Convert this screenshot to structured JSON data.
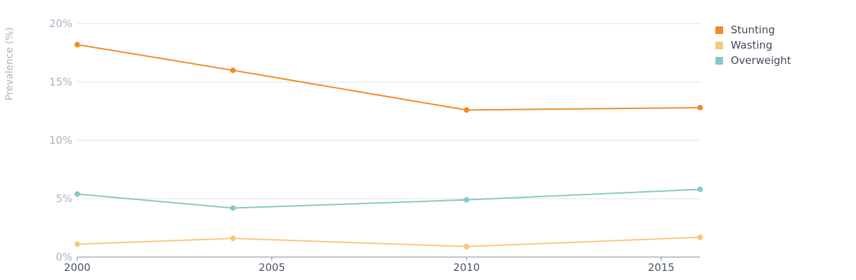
{
  "chart_data": {
    "type": "line",
    "title": "",
    "ylabel": "Prevalence (%)",
    "xlabel": "",
    "x": [
      2000,
      2004,
      2010,
      2016
    ],
    "x_ticks": [
      2000,
      2005,
      2010,
      2015
    ],
    "x_tick_labels": [
      "2000",
      "2005",
      "2010",
      "2015"
    ],
    "ylim": [
      0,
      20
    ],
    "y_ticks": [
      0,
      5,
      10,
      15,
      20
    ],
    "y_tick_labels": [
      "0%",
      "5%",
      "10%",
      "15%",
      "20%"
    ],
    "grid": true,
    "legend_position": "top-right",
    "series": [
      {
        "name": "Stunting",
        "color": "#f28b25",
        "values": [
          18.2,
          16.0,
          12.6,
          12.8
        ]
      },
      {
        "name": "Wasting",
        "color": "#fcc57d",
        "values": [
          1.1,
          1.6,
          0.9,
          1.7
        ]
      },
      {
        "name": "Overweight",
        "color": "#86c8c4",
        "values": [
          5.4,
          4.2,
          4.9,
          5.8
        ]
      }
    ]
  }
}
